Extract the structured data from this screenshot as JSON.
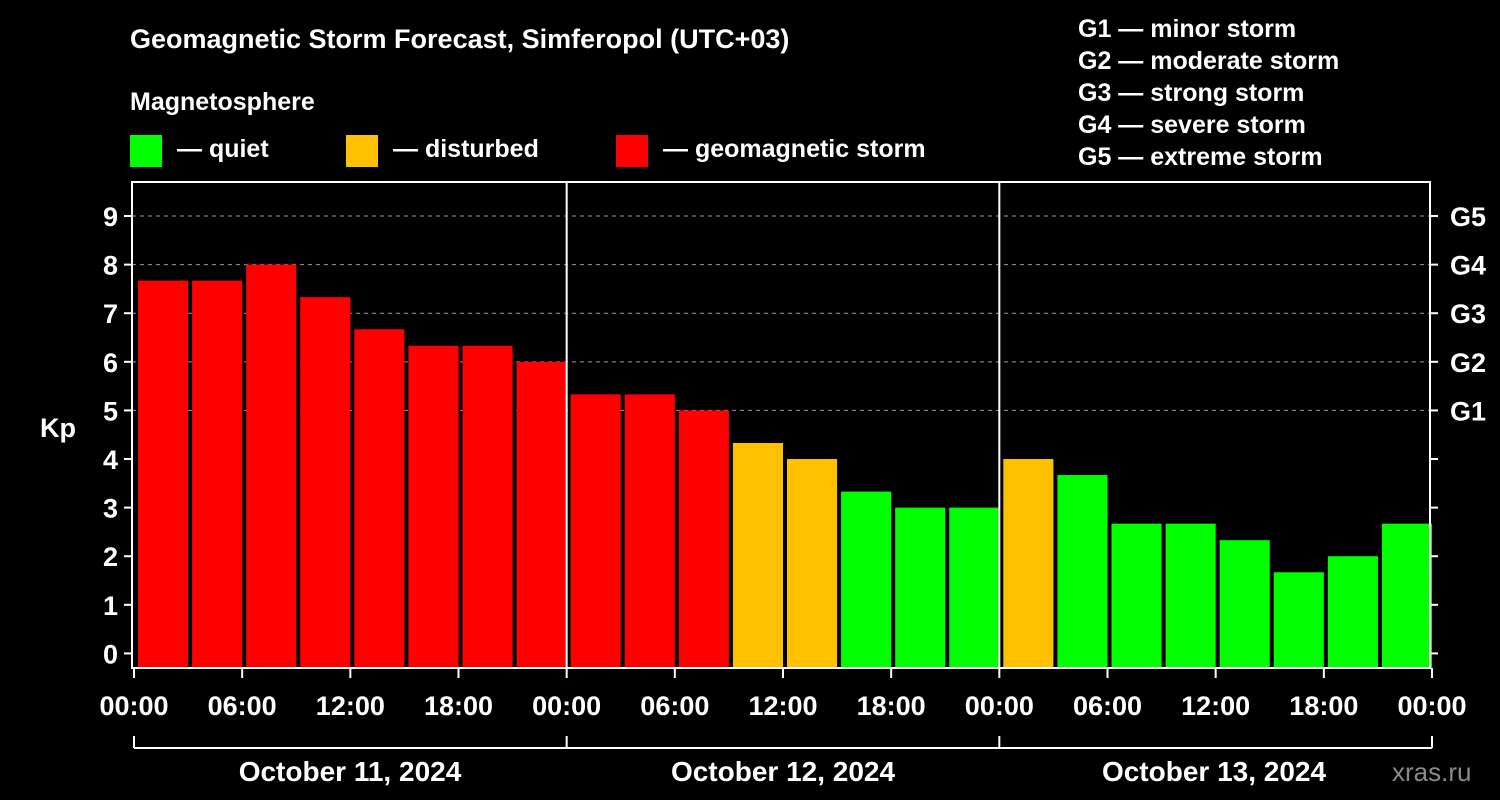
{
  "chart_data": {
    "type": "bar",
    "title": "Geomagnetic Storm Forecast, Simferopol (UTC+03)",
    "ylabel": "Kp",
    "ylim": [
      -0.3,
      9.7
    ],
    "yticks": [
      "0",
      "1",
      "2",
      "3",
      "4",
      "5",
      "6",
      "7",
      "8",
      "9"
    ],
    "right_ticks": [
      {
        "kp": 5,
        "label": "G1"
      },
      {
        "kp": 6,
        "label": "G2"
      },
      {
        "kp": 7,
        "label": "G3"
      },
      {
        "kp": 8,
        "label": "G4"
      },
      {
        "kp": 9,
        "label": "G5"
      }
    ],
    "grid": "dashed horizontal at Kp 5-9",
    "x_tick_labels": [
      "00:00",
      "06:00",
      "12:00",
      "18:00",
      "00:00",
      "06:00",
      "12:00",
      "18:00",
      "00:00",
      "06:00",
      "12:00",
      "18:00",
      "00:00"
    ],
    "days": [
      "October 11, 2024",
      "October 12, 2024",
      "October 13, 2024"
    ],
    "bars_per_day": 8,
    "values": [
      7.67,
      7.67,
      8.0,
      7.33,
      6.67,
      6.33,
      6.33,
      6.0,
      5.33,
      5.33,
      5.0,
      4.33,
      4.0,
      3.33,
      3.0,
      3.0,
      4.0,
      3.67,
      2.67,
      2.67,
      2.33,
      1.67,
      2.0,
      2.67
    ],
    "status": [
      "storm",
      "storm",
      "storm",
      "storm",
      "storm",
      "storm",
      "storm",
      "storm",
      "storm",
      "storm",
      "storm",
      "disturbed",
      "disturbed",
      "quiet",
      "quiet",
      "quiet",
      "disturbed",
      "quiet",
      "quiet",
      "quiet",
      "quiet",
      "quiet",
      "quiet",
      "quiet"
    ],
    "colors": {
      "quiet": "#00ff00",
      "disturbed": "#ffc000",
      "storm": "#ff0000"
    }
  },
  "legend": {
    "title": "Magnetosphere",
    "items": [
      {
        "key": "quiet",
        "label": "— quiet"
      },
      {
        "key": "disturbed",
        "label": "— disturbed"
      },
      {
        "key": "storm",
        "label": "— geomagnetic storm"
      }
    ]
  },
  "g_scale": [
    "G1 — minor storm",
    "G2 — moderate storm",
    "G3 — strong storm",
    "G4 — severe storm",
    "G5 — extreme storm"
  ],
  "watermark": "xras.ru"
}
